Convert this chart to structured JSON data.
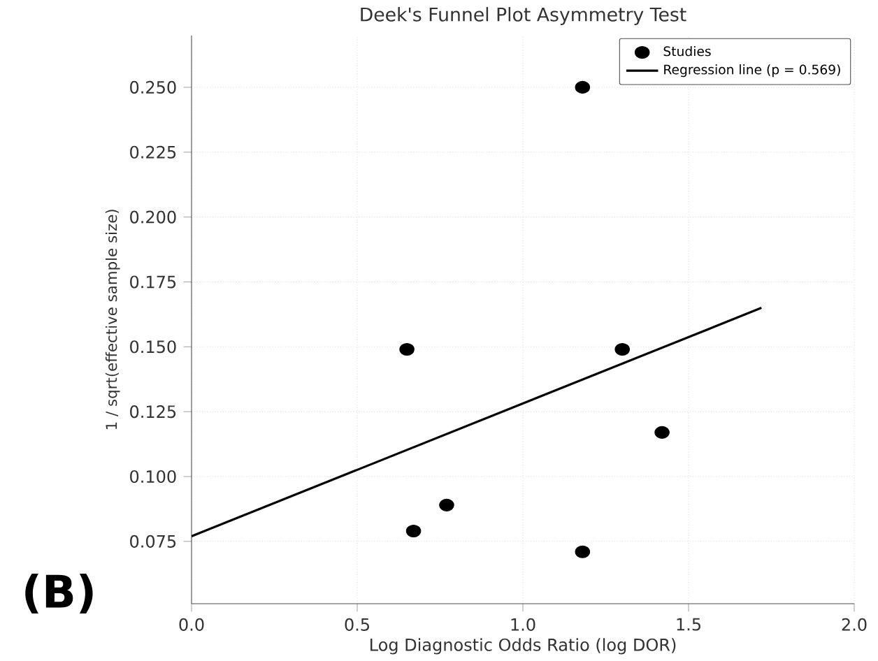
{
  "chart_data": {
    "type": "scatter",
    "title": "Deek's Funnel Plot Asymmetry Test",
    "xlabel": "Log Diagnostic Odds Ratio (log DOR)",
    "ylabel": "1 / sqrt(effective sample size)",
    "annotations": [
      "(B)"
    ],
    "xlim": [
      0,
      2
    ],
    "ylim": [
      0.051,
      0.27
    ],
    "xticks": [
      {
        "value": 0,
        "label": "0.0"
      },
      {
        "value": 0.5,
        "label": "0.5"
      },
      {
        "value": 1,
        "label": "1.0"
      },
      {
        "value": 1.5,
        "label": "1.5"
      },
      {
        "value": 2,
        "label": "2.0"
      }
    ],
    "yticks": [
      {
        "value": 0.075,
        "label": "0.075"
      },
      {
        "value": 0.1,
        "label": "0.100"
      },
      {
        "value": 0.125,
        "label": "0.125"
      },
      {
        "value": 0.15,
        "label": "0.150"
      },
      {
        "value": 0.175,
        "label": "0.175"
      },
      {
        "value": 0.2,
        "label": "0.200"
      },
      {
        "value": 0.225,
        "label": "0.225"
      },
      {
        "value": 0.25,
        "label": "0.250"
      }
    ],
    "grid": true,
    "legend": "top right",
    "marker": "circle",
    "series": [
      {
        "name": "Studies",
        "color": "#000000",
        "x": [
          0.65,
          0.67,
          0.77,
          1.18,
          1.3,
          1.42,
          1.18
        ],
        "values": [
          0.149,
          0.079,
          0.089,
          0.071,
          0.149,
          0.117,
          0.25
        ]
      },
      {
        "name": "Regression line (p = 0.569)",
        "type": "line",
        "marker": "none",
        "color": "#000000",
        "line_style": "solid",
        "x": [
          0,
          1.72
        ],
        "values": [
          0.077,
          0.165
        ]
      }
    ]
  }
}
